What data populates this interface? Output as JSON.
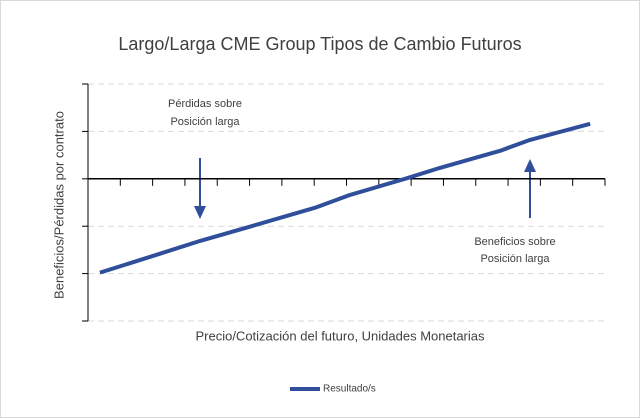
{
  "chart_data": {
    "type": "line",
    "title": "Largo/Larga CME Group Tipos de Cambio Futuros",
    "x_label": "Precio/Cotización del futuro, Unidades Monetarias",
    "y_label": "Beneficios/Pérdidas por contrato",
    "annotations": [
      [
        "Pérdidas sobre",
        "Posición larga"
      ],
      [
        "Beneficios sobre",
        "Posición larga"
      ]
    ],
    "x": [
      0.37,
      2.23,
      3.47,
      5.01,
      7.03,
      8.11,
      9.81,
      10.89,
      12.75,
      13.68,
      15.54
    ],
    "series": [
      {
        "name": "Resultado/s",
        "color": "#2f4f9a",
        "values": [
          -1.98,
          -1.58,
          -1.31,
          -1.01,
          -0.61,
          -0.34,
          0,
          0.23,
          0.59,
          0.82,
          1.16
        ]
      }
    ],
    "xlim": [
      0,
      16
    ],
    "xticks": [
      0,
      1,
      2,
      3,
      4,
      5,
      6,
      7,
      8,
      9,
      10,
      11,
      12,
      13,
      14,
      15,
      16
    ],
    "ylim": [
      -3,
      2
    ],
    "yticks": [
      -3,
      -2,
      -1,
      0,
      1,
      2
    ],
    "grid": true,
    "legend": "bottom"
  }
}
